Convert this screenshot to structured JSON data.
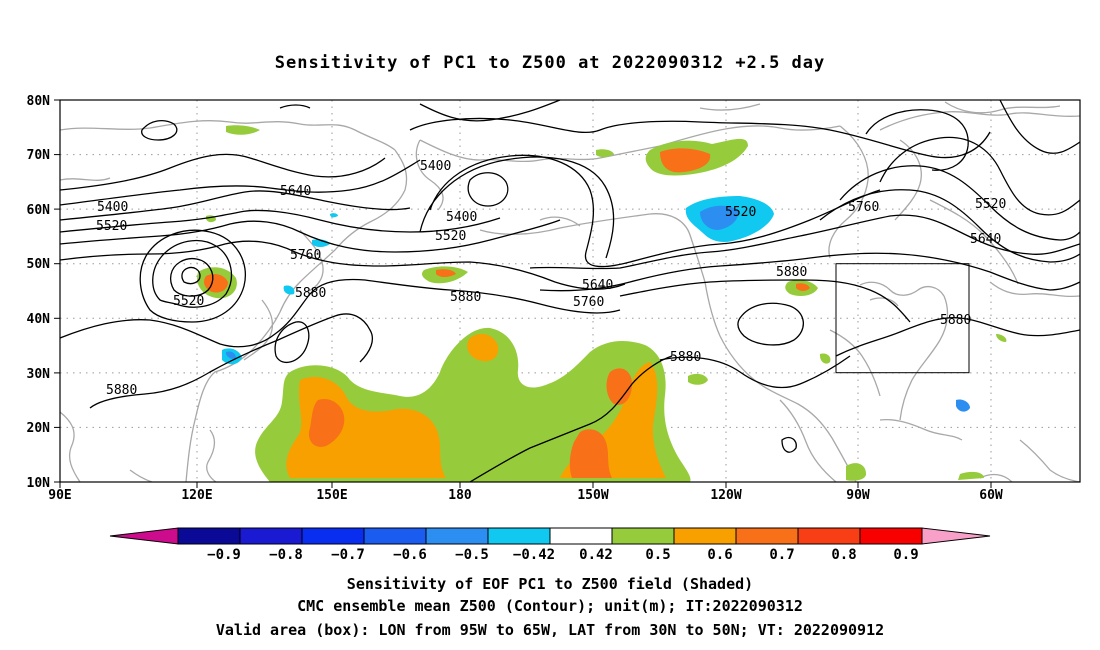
{
  "title": "Sensitivity of PC1 to Z500 at 2022090312 +2.5 day",
  "lat_labels": [
    "80N",
    "70N",
    "60N",
    "50N",
    "40N",
    "30N",
    "20N",
    "10N"
  ],
  "lon_labels": [
    "90E",
    "120E",
    "150E",
    "180",
    "150W",
    "120W",
    "90W",
    "60W"
  ],
  "contour_labels": [
    {
      "text": "5400"
    },
    {
      "text": "5520"
    },
    {
      "text": "5640"
    },
    {
      "text": "5400"
    },
    {
      "text": "5400"
    },
    {
      "text": "5520"
    },
    {
      "text": "5520"
    },
    {
      "text": "5760"
    },
    {
      "text": "5880"
    },
    {
      "text": "5880"
    },
    {
      "text": "5640"
    },
    {
      "text": "5760"
    },
    {
      "text": "5880"
    },
    {
      "text": "5520"
    },
    {
      "text": "5760"
    },
    {
      "text": "5880"
    },
    {
      "text": "5880"
    },
    {
      "text": "5520"
    },
    {
      "text": "5640"
    },
    {
      "text": "5880"
    }
  ],
  "valid_box": {
    "lon_from": "95W",
    "lon_to": "65W",
    "lat_from": "30N",
    "lat_to": "50N"
  },
  "colorbar": {
    "labels": [
      "-0.9",
      "-0.8",
      "-0.7",
      "-0.6",
      "-0.5",
      "-0.42",
      "0.42",
      "0.5",
      "0.6",
      "0.7",
      "0.8",
      "0.9"
    ],
    "colors": [
      "#cc0c8c",
      "#0a0a96",
      "#1a1ad2",
      "#0a2ef0",
      "#1a5cf0",
      "#2b8ef0",
      "#10c8f0",
      "#ffffff",
      "#96cc3c",
      "#f8a000",
      "#f87018",
      "#f83e14",
      "#f80000",
      "#f8a0c8"
    ]
  },
  "caption": [
    "Sensitivity of EOF PC1 to Z500 field (Shaded)",
    "CMC ensemble mean Z500 (Contour); unit(m); IT:2022090312",
    "Valid area (box): LON from 95W to 65W, LAT from 30N to 50N; VT: 2022090912"
  ],
  "colors": {
    "coastline": "#a8a8a8",
    "contour": "#000000",
    "positive_low": "#96cc3c",
    "positive_mid": "#f8a000",
    "positive_high": "#f87018",
    "negative": "#10c8f0"
  }
}
